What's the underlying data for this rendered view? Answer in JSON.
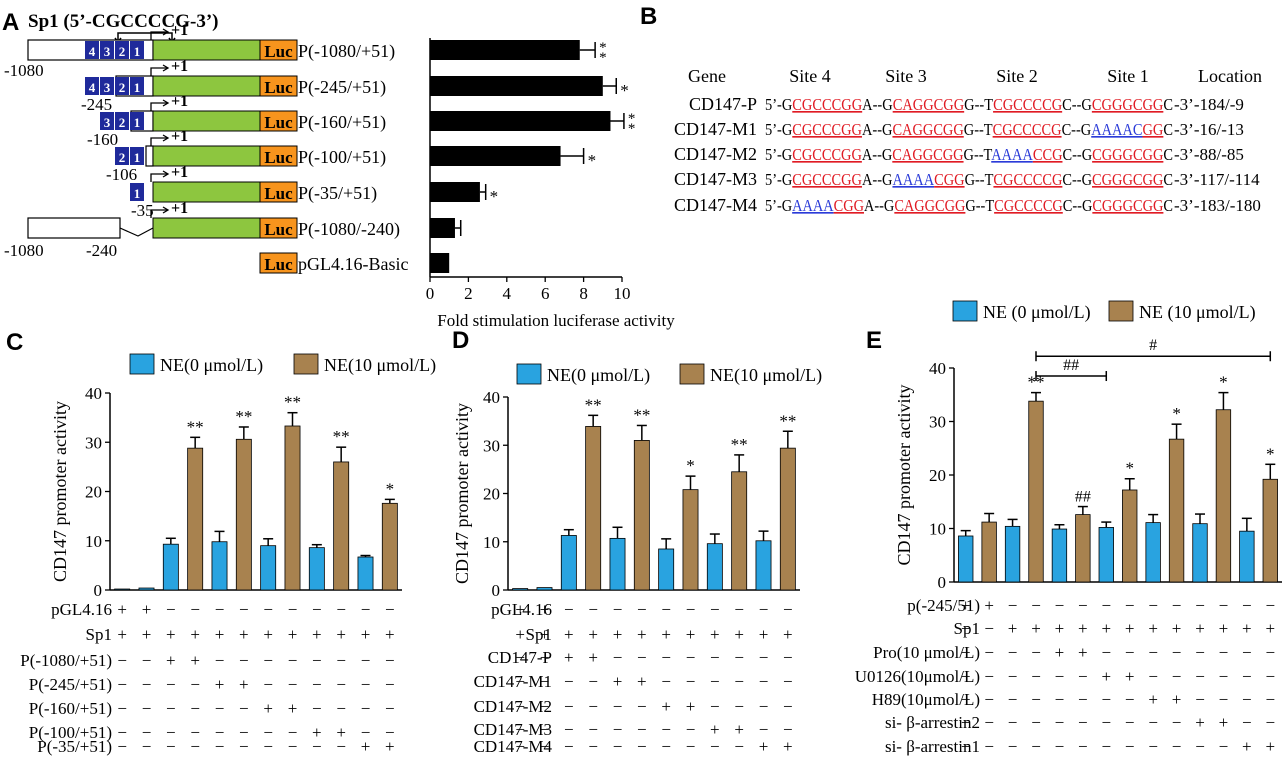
{
  "colors": {
    "blue": "#29a3e0",
    "brown": "#a8824f",
    "green": "#8dc63f",
    "luc": "#f7941d",
    "sp1box": "#1f2a9b",
    "red": "#e01b24",
    "mutblue": "#2b3bd8",
    "black": "#000000"
  },
  "panelA": {
    "letter": "A",
    "sp1_title": "Sp1 (5’-CGCCCCG-3’)",
    "plus1": "+1",
    "luc_label": "Luc",
    "constructs": [
      {
        "start": "-1080",
        "label": "P(-1080/+51)",
        "sites": [
          "4",
          "3",
          "2",
          "1"
        ]
      },
      {
        "start": "-245",
        "label": "P(-245/+51)",
        "sites": [
          "4",
          "3",
          "2",
          "1"
        ]
      },
      {
        "start": "-160",
        "label": "P(-160/+51)",
        "sites": [
          "3",
          "2",
          "1"
        ]
      },
      {
        "start": "-106",
        "label": "P(-100/+51)",
        "sites": [
          "2",
          "1"
        ]
      },
      {
        "start": "-35",
        "label": "P(-35/+51)",
        "sites": [
          "1"
        ]
      },
      {
        "start": "-1080",
        "end": "-240",
        "label": "P(-1080/-240)",
        "sites": []
      },
      {
        "label": "pGL4.16-Basic",
        "sites": []
      }
    ]
  },
  "panelB": {
    "letter": "B",
    "headers": [
      "Gene",
      "Site 4",
      "Site 3",
      "Site 2",
      "Site 1",
      "Location"
    ],
    "rows": [
      {
        "gene": "CD147-P",
        "location": "-3’-184/-9",
        "segs": [
          [
            "5’-G",
            "k"
          ],
          [
            "CGCCCGG",
            "r"
          ],
          [
            "A--G",
            "k"
          ],
          [
            "CAGGCGG",
            "r"
          ],
          [
            "G--T",
            "k"
          ],
          [
            "CGCCCCG",
            "r"
          ],
          [
            "C--G",
            "k"
          ],
          [
            "CGGGCGG",
            "r"
          ],
          [
            "C",
            "k"
          ]
        ]
      },
      {
        "gene": "CD147-M1",
        "location": "-3’-16/-13",
        "segs": [
          [
            "5’-G",
            "k"
          ],
          [
            "CGCCCGG",
            "r"
          ],
          [
            "A--G",
            "k"
          ],
          [
            "CAGGCGG",
            "r"
          ],
          [
            "G--T",
            "k"
          ],
          [
            "CGCCCCG",
            "r"
          ],
          [
            "C--G",
            "k"
          ],
          [
            "AAAAC",
            "b"
          ],
          [
            "GG",
            "r"
          ],
          [
            "C",
            "k"
          ]
        ]
      },
      {
        "gene": "CD147-M2",
        "location": "-3’-88/-85",
        "segs": [
          [
            "5’-G",
            "k"
          ],
          [
            "CGCCCGG",
            "r"
          ],
          [
            "A--G",
            "k"
          ],
          [
            "CAGGCGG",
            "r"
          ],
          [
            "G--T",
            "k"
          ],
          [
            "AAAA",
            "b"
          ],
          [
            "CCG",
            "r"
          ],
          [
            "C--G",
            "k"
          ],
          [
            "CGGGCGG",
            "r"
          ],
          [
            "C",
            "k"
          ]
        ]
      },
      {
        "gene": "CD147-M3",
        "location": "-3’-117/-114",
        "segs": [
          [
            "5’-G",
            "k"
          ],
          [
            "CGCCCGG",
            "r"
          ],
          [
            "A--G",
            "k"
          ],
          [
            "AAAA",
            "b"
          ],
          [
            "CGG",
            "r"
          ],
          [
            "G--T",
            "k"
          ],
          [
            "CGCCCCG",
            "r"
          ],
          [
            "C--G",
            "k"
          ],
          [
            "CGGGCGG",
            "r"
          ],
          [
            "C",
            "k"
          ]
        ]
      },
      {
        "gene": "CD147-M4",
        "location": "-3’-183/-180",
        "segs": [
          [
            "5’-G",
            "k"
          ],
          [
            "AAAA",
            "b"
          ],
          [
            "CGG",
            "r"
          ],
          [
            "A--G",
            "k"
          ],
          [
            "CAGGCGG",
            "r"
          ],
          [
            "G--T",
            "k"
          ],
          [
            "CGCCCCG",
            "r"
          ],
          [
            "C--G",
            "k"
          ],
          [
            "CGGGCGG",
            "r"
          ],
          [
            "C",
            "k"
          ]
        ]
      }
    ]
  },
  "panelC": {
    "letter": "C",
    "row_labels": [
      "pGL4.16",
      "Sp1",
      "P(-1080/+51)",
      "P(-245/+51)",
      "P(-160/+51)",
      "P(-100/+51)",
      "P(-35/+51)"
    ]
  },
  "panelD": {
    "letter": "D",
    "row_labels": [
      "pGL4.16",
      "Sp1",
      "CD147-P",
      "CD147-M1",
      "CD147-M2",
      "CD147-M3",
      "CD147-M4"
    ]
  },
  "panelE": {
    "letter": "E",
    "row_labels": [
      "p(-245/51)",
      "Sp1",
      "Pro(10 μmol/L)",
      "U0126(10μmol/L)",
      "H89(10μmol/L)",
      "si- β-arrestin2",
      "si- β-arrestin1"
    ],
    "bracket_labels": [
      "##",
      "#"
    ]
  },
  "chart_data": [
    {
      "type": "bar",
      "panel": "A",
      "orientation": "horizontal",
      "categories": [
        "P(-1080/+51)",
        "P(-245/+51)",
        "P(-160/+51)",
        "P(-100/+51)",
        "P(-35/+51)",
        "P(-1080/-240)",
        "pGL4.16-Basic"
      ],
      "values": [
        7.8,
        9.0,
        9.4,
        6.8,
        2.6,
        1.3,
        1.0
      ],
      "errors": [
        0.8,
        0.7,
        0.7,
        1.2,
        0.3,
        0.3,
        0.0
      ],
      "significance": [
        "**",
        "*",
        "**",
        "*",
        "*",
        "",
        ""
      ],
      "xlabel": "Fold stimulation luciferase activity",
      "xlim": [
        0,
        10
      ],
      "ticks": [
        0,
        2,
        4,
        6,
        8,
        10
      ]
    },
    {
      "type": "bar",
      "panel": "C",
      "ylabel": "CD147  promoter activity",
      "ylim": [
        0,
        40
      ],
      "ticks": [
        0,
        10,
        20,
        30,
        40
      ],
      "legend": [
        "NE(0 μmol/L)",
        "NE(10 μmol/L)"
      ],
      "legend_style": "compact",
      "values": [
        0.2,
        0.4,
        9.3,
        28.8,
        9.8,
        30.6,
        9.0,
        33.3,
        8.6,
        26.0,
        6.7,
        17.6
      ],
      "errors": [
        0,
        0,
        1.2,
        2.2,
        2.1,
        2.5,
        1.4,
        2.7,
        0.6,
        3.0,
        0.3,
        0.8
      ],
      "colors": [
        "b",
        "b",
        "b",
        "r",
        "b",
        "r",
        "b",
        "r",
        "b",
        "r",
        "b",
        "r"
      ],
      "sig": [
        "",
        "",
        "",
        "**",
        "",
        "**",
        "",
        "**",
        "",
        "**",
        "",
        "*"
      ],
      "signs": [
        [
          "+",
          "+",
          "−",
          "−",
          "−",
          "−",
          "−",
          "−",
          "−",
          "−",
          "−",
          "−"
        ],
        [
          "+",
          "+",
          "+",
          "+",
          "+",
          "+",
          "+",
          "+",
          "+",
          "+",
          "+",
          "+"
        ],
        [
          "−",
          "−",
          "+",
          "+",
          "−",
          "−",
          "−",
          "−",
          "−",
          "−",
          "−",
          "−"
        ],
        [
          "−",
          "−",
          "−",
          "−",
          "+",
          "+",
          "−",
          "−",
          "−",
          "−",
          "−",
          "−"
        ],
        [
          "−",
          "−",
          "−",
          "−",
          "−",
          "−",
          "+",
          "+",
          "−",
          "−",
          "−",
          "−"
        ],
        [
          "−",
          "−",
          "−",
          "−",
          "−",
          "−",
          "−",
          "−",
          "+",
          "+",
          "−",
          "−"
        ],
        [
          "−",
          "−",
          "−",
          "−",
          "−",
          "−",
          "−",
          "−",
          "−",
          "−",
          "+",
          "+"
        ]
      ]
    },
    {
      "type": "bar",
      "panel": "D",
      "ylabel": "CD147  promoter activity",
      "ylim": [
        0,
        40
      ],
      "ticks": [
        0,
        10,
        20,
        30,
        40
      ],
      "legend": [
        "NE(0 μmol/L)",
        "NE(10 μmol/L)"
      ],
      "legend_style": "compact",
      "values": [
        0.3,
        0.5,
        11.3,
        33.9,
        10.7,
        31.0,
        8.5,
        20.8,
        9.6,
        24.5,
        10.2,
        29.4
      ],
      "errors": [
        0,
        0,
        1.2,
        2.3,
        2.3,
        3.1,
        2.1,
        2.8,
        2.0,
        3.5,
        2.0,
        3.5
      ],
      "colors": [
        "b",
        "b",
        "b",
        "r",
        "b",
        "r",
        "b",
        "r",
        "b",
        "r",
        "b",
        "r"
      ],
      "sig": [
        "",
        "",
        "",
        "**",
        "",
        "**",
        "",
        "*",
        "",
        "**",
        "",
        "**"
      ],
      "signs": [
        [
          "+",
          "+",
          "−",
          "−",
          "−",
          "−",
          "−",
          "−",
          "−",
          "−",
          "−",
          "−"
        ],
        [
          "+",
          "+",
          "+",
          "+",
          "+",
          "+",
          "+",
          "+",
          "+",
          "+",
          "+",
          "+"
        ],
        [
          "−",
          "−",
          "+",
          "+",
          "−",
          "−",
          "−",
          "−",
          "−",
          "−",
          "−",
          "−"
        ],
        [
          "−",
          "−",
          "−",
          "−",
          "+",
          "+",
          "−",
          "−",
          "−",
          "−",
          "−",
          "−"
        ],
        [
          "−",
          "−",
          "−",
          "−",
          "−",
          "−",
          "+",
          "+",
          "−",
          "−",
          "−",
          "−"
        ],
        [
          "−",
          "−",
          "−",
          "−",
          "−",
          "−",
          "−",
          "−",
          "+",
          "+",
          "−",
          "−"
        ],
        [
          "−",
          "−",
          "−",
          "−",
          "−",
          "−",
          "−",
          "−",
          "−",
          "−",
          "+",
          "+"
        ]
      ]
    },
    {
      "type": "bar",
      "panel": "E",
      "ylabel": "CD147  promoter activity",
      "ylim": [
        0,
        40
      ],
      "ticks": [
        0,
        10,
        20,
        30,
        40
      ],
      "legend": [
        "NE (0 μmol/L)",
        "NE (10 μmol/L)"
      ],
      "legend_style": "spaced",
      "values": [
        8.6,
        11.2,
        10.4,
        33.8,
        9.9,
        12.6,
        10.2,
        17.2,
        11.1,
        26.7,
        10.9,
        32.2,
        9.5,
        19.2
      ],
      "errors": [
        1.0,
        1.6,
        1.3,
        1.6,
        0.8,
        1.5,
        1.0,
        2.1,
        1.5,
        2.8,
        1.8,
        3.2,
        2.4,
        2.8
      ],
      "colors": [
        "b",
        "r",
        "b",
        "r",
        "b",
        "r",
        "b",
        "r",
        "b",
        "r",
        "b",
        "r",
        "b",
        "r"
      ],
      "sig": [
        "",
        "",
        "",
        "**",
        "",
        "##",
        "",
        "*",
        "",
        "*",
        "",
        "*",
        "",
        "*"
      ],
      "brackets": [
        {
          "from": 3,
          "to": 6,
          "label": "##"
        },
        {
          "from": 3,
          "to": 13,
          "label": "#"
        }
      ],
      "signs": [
        [
          "+",
          "+",
          "−",
          "−",
          "−",
          "−",
          "−",
          "−",
          "−",
          "−",
          "−",
          "−",
          "−",
          "−"
        ],
        [
          "−",
          "−",
          "+",
          "+",
          "+",
          "+",
          "+",
          "+",
          "+",
          "+",
          "+",
          "+",
          "+",
          "+"
        ],
        [
          "−",
          "−",
          "−",
          "−",
          "+",
          "+",
          "−",
          "−",
          "−",
          "−",
          "−",
          "−",
          "−",
          "−"
        ],
        [
          "−",
          "−",
          "−",
          "−",
          "−",
          "−",
          "+",
          "+",
          "−",
          "−",
          "−",
          "−",
          "−",
          "−"
        ],
        [
          "−",
          "−",
          "−",
          "−",
          "−",
          "−",
          "−",
          "−",
          "+",
          "+",
          "−",
          "−",
          "−",
          "−"
        ],
        [
          "−",
          "−",
          "−",
          "−",
          "−",
          "−",
          "−",
          "−",
          "−",
          "−",
          "+",
          "+",
          "−",
          "−"
        ],
        [
          "−",
          "−",
          "−",
          "−",
          "−",
          "−",
          "−",
          "−",
          "−",
          "−",
          "−",
          "−",
          "+",
          "+"
        ]
      ]
    }
  ]
}
